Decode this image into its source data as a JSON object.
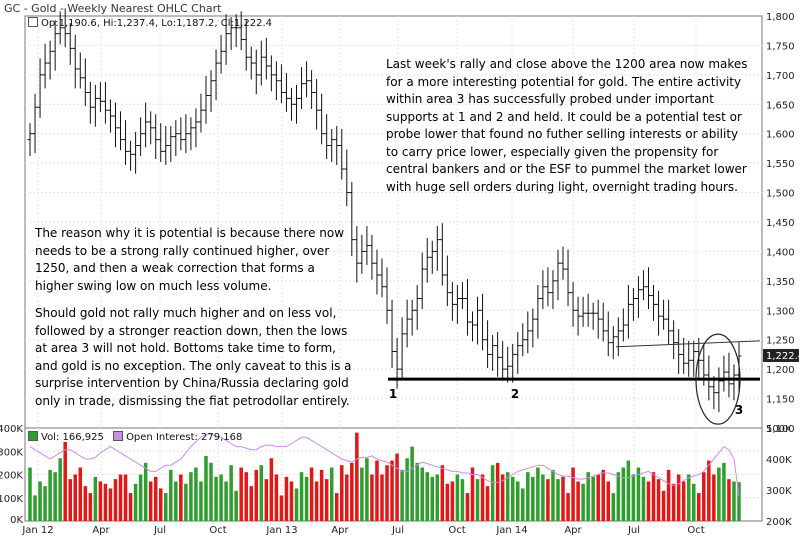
{
  "header": {
    "title": "GC - Gold - Weekly Nearest OHLC Chart",
    "ohlc_readout": "Op:1,190.6, Hi:1,237.4, Lo:1,187.2, Cl:1,222.4",
    "last_price_label": "1,222.4"
  },
  "volume_legend": {
    "vol_label": "Vol: 166,925",
    "oi_label": "Open Interest: 279,168",
    "vol_swatch_color": "#2f9e2f",
    "oi_swatch_color": "#c98ee6"
  },
  "annotations": {
    "top_note": "Last week's rally and close above the 1200 area now makes for a more interesting potential for gold. The entire activity within area 3 has successfully probed under important supports at 1 and 2 and held. It could be a potential test or probe lower that found no futher selling interests or ability to carry price lower, especially given the propensity for central bankers and or the ESF to pummel the market lower with huge sell orders during light, overnight trading hours.",
    "left_note_1": "The reason why it is potential is because there now needs to be a strong rally continued higher, over 1250, and then a weak correction that forms a higher swing low on much less volume.",
    "left_note_2": "Should gold not rally much higher and on less vol, followed by a stronger reaction down, then the lows at area 3 will not hold. Bottoms take time to form, and gold is no exception. The only caveat to this is a surprise intervention by China/Russia declaring gold only in trade, dismissing the fiat petrodollar entirely.",
    "area_labels": [
      "1",
      "2",
      "3"
    ]
  },
  "chart_data": {
    "type": "ohlc",
    "title": "GC - Gold - Weekly Nearest OHLC Chart",
    "x_tick_labels": [
      "Jan 12",
      "Apr",
      "Jul",
      "Oct",
      "Jan 13",
      "Apr",
      "Jul",
      "Oct",
      "Jan 14",
      "Apr",
      "Jul",
      "Oct"
    ],
    "price_axis": {
      "ylim": [
        1100,
        1800
      ],
      "ticks": [
        "1,100",
        "1,150",
        "1,200",
        "1,250",
        "1,300",
        "1,350",
        "1,400",
        "1,450",
        "1,500",
        "1,550",
        "1,600",
        "1,650",
        "1,700",
        "1,750",
        "1,800"
      ]
    },
    "volume_axis": {
      "ylim": [
        0,
        400000
      ],
      "ticks": [
        "0K",
        "100K",
        "200K",
        "300K",
        "400K"
      ]
    },
    "open_interest_axis": {
      "ylim": [
        200000,
        500000
      ],
      "ticks": [
        "200K",
        "300K",
        "400K",
        "500K"
      ]
    },
    "price_closes": [
      1600,
      1645,
      1700,
      1720,
      1740,
      1770,
      1780,
      1770,
      1745,
      1710,
      1695,
      1670,
      1645,
      1660,
      1655,
      1640,
      1630,
      1610,
      1590,
      1570,
      1565,
      1580,
      1600,
      1620,
      1610,
      1590,
      1570,
      1580,
      1595,
      1600,
      1590,
      1600,
      1610,
      1620,
      1640,
      1665,
      1690,
      1720,
      1740,
      1770,
      1780,
      1780,
      1760,
      1730,
      1720,
      1700,
      1730,
      1715,
      1700,
      1690,
      1670,
      1660,
      1650,
      1660,
      1685,
      1690,
      1670,
      1640,
      1600,
      1580,
      1590,
      1580,
      1540,
      1500,
      1420,
      1380,
      1400,
      1410,
      1380,
      1360,
      1340,
      1300,
      1230,
      1200,
      1260,
      1285,
      1300,
      1320,
      1370,
      1390,
      1400,
      1420,
      1360,
      1330,
      1310,
      1320,
      1320,
      1280,
      1275,
      1300,
      1250,
      1225,
      1240,
      1220,
      1200,
      1205,
      1225,
      1240,
      1250,
      1265,
      1285,
      1320,
      1340,
      1330,
      1350,
      1380,
      1370,
      1330,
      1300,
      1290,
      1295,
      1295,
      1295,
      1285,
      1265,
      1245,
      1255,
      1265,
      1275,
      1310,
      1320,
      1335,
      1340,
      1325,
      1310,
      1290,
      1285,
      1265,
      1245,
      1225,
      1210,
      1215,
      1230,
      1215,
      1190,
      1170,
      1160,
      1180,
      1195,
      1175,
      1190,
      1222.4
    ],
    "volume_values": [
      230000,
      110000,
      170000,
      150000,
      220000,
      210000,
      270000,
      340000,
      180000,
      200000,
      230000,
      150000,
      120000,
      190000,
      170000,
      160000,
      140000,
      180000,
      200000,
      200000,
      120000,
      160000,
      200000,
      250000,
      170000,
      190000,
      140000,
      120000,
      220000,
      170000,
      200000,
      160000,
      210000,
      230000,
      170000,
      280000,
      250000,
      190000,
      200000,
      170000,
      240000,
      130000,
      230000,
      210000,
      150000,
      220000,
      240000,
      180000,
      270000,
      200000,
      110000,
      190000,
      170000,
      140000,
      210000,
      190000,
      230000,
      170000,
      220000,
      180000,
      230000,
      120000,
      240000,
      200000,
      250000,
      380000,
      230000,
      270000,
      200000,
      260000,
      200000,
      240000,
      260000,
      290000,
      220000,
      270000,
      320000,
      250000,
      230000,
      210000,
      190000,
      200000,
      240000,
      160000,
      170000,
      200000,
      180000,
      120000,
      230000,
      180000,
      200000,
      150000,
      240000,
      250000,
      200000,
      210000,
      190000,
      170000,
      140000,
      210000,
      190000,
      230000,
      200000,
      180000,
      220000,
      180000,
      190000,
      120000,
      230000,
      170000,
      160000,
      210000,
      190000,
      200000,
      220000,
      170000,
      120000,
      210000,
      230000,
      260000,
      200000,
      230000,
      190000,
      170000,
      210000,
      180000,
      130000,
      220000,
      160000,
      200000,
      170000,
      200000,
      160000,
      120000,
      210000,
      260000,
      200000,
      230000,
      250000,
      180000,
      170000,
      166925
    ],
    "open_interest_values": [
      440000,
      430000,
      420000,
      410000,
      400000,
      410000,
      420000,
      430000,
      430000,
      420000,
      410000,
      400000,
      400000,
      405000,
      420000,
      430000,
      440000,
      430000,
      420000,
      410000,
      400000,
      390000,
      380000,
      370000,
      360000,
      360000,
      370000,
      380000,
      380000,
      390000,
      400000,
      420000,
      440000,
      455000,
      470000,
      480000,
      480000,
      475000,
      470000,
      460000,
      450000,
      440000,
      440000,
      435000,
      430000,
      430000,
      440000,
      445000,
      445000,
      440000,
      440000,
      440000,
      450000,
      460000,
      470000,
      470000,
      460000,
      450000,
      440000,
      430000,
      420000,
      410000,
      400000,
      395000,
      390000,
      400000,
      405000,
      405000,
      410000,
      400000,
      395000,
      390000,
      380000,
      370000,
      360000,
      360000,
      370000,
      380000,
      390000,
      385000,
      380000,
      375000,
      370000,
      365000,
      360000,
      360000,
      355000,
      355000,
      350000,
      350000,
      340000,
      330000,
      325000,
      325000,
      330000,
      340000,
      350000,
      360000,
      365000,
      370000,
      375000,
      380000,
      380000,
      370000,
      360000,
      350000,
      345000,
      345000,
      340000,
      335000,
      335000,
      340000,
      345000,
      350000,
      355000,
      355000,
      350000,
      345000,
      340000,
      340000,
      345000,
      350000,
      355000,
      360000,
      350000,
      340000,
      330000,
      320000,
      315000,
      320000,
      330000,
      340000,
      345000,
      350000,
      360000,
      380000,
      400000,
      420000,
      440000,
      430000,
      400000,
      279168
    ],
    "volume_up_color": "#2f9e2f",
    "volume_down_color": "#e01818",
    "open_interest_color": "#c98ee6",
    "support_line_price": 1183,
    "upper_line_prices": [
      1238,
      1248
    ],
    "grid": true
  }
}
